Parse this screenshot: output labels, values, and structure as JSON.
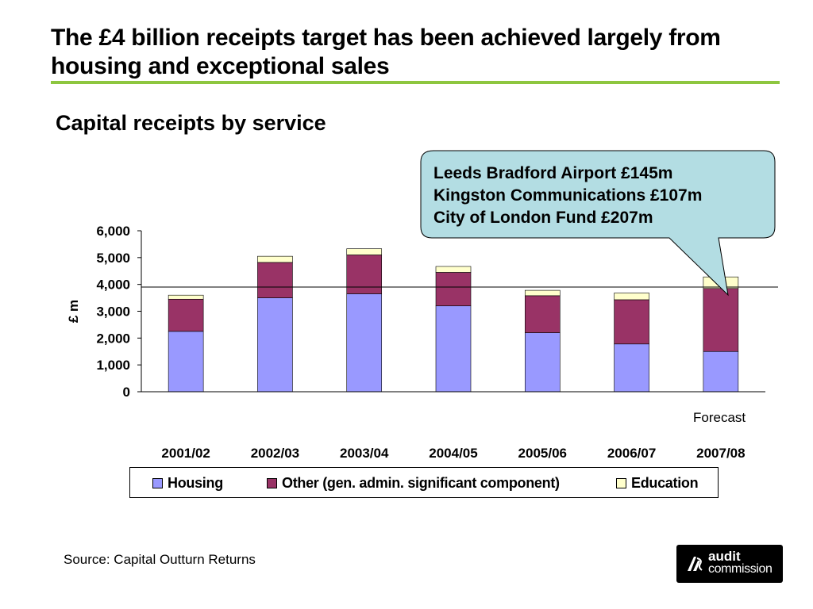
{
  "slide": {
    "title": "The £4 billion receipts target has been achieved largely from housing and exceptional sales",
    "subtitle": "Capital receipts by service",
    "source": "Source: Capital Outturn Returns",
    "forecast_label": "Forecast",
    "callout": {
      "lines": [
        "Leeds Bradford Airport £145m",
        "Kingston Communications £107m",
        "City of London Fund £207m"
      ]
    },
    "logo": {
      "line1": "audit",
      "line2": "commission"
    }
  },
  "colors": {
    "housing": "#9999ff",
    "other": "#993366",
    "education": "#ffffcc",
    "title_rule": "#8dc63f",
    "callout_fill": "#b3dde3"
  },
  "chart_data": {
    "type": "bar",
    "stacked": true,
    "categories": [
      "2001/02",
      "2002/03",
      "2003/04",
      "2004/05",
      "2005/06",
      "2006/07",
      "2007/08"
    ],
    "series": [
      {
        "name": "Housing",
        "values": [
          2250,
          3500,
          3650,
          3200,
          2200,
          1780,
          1500
        ]
      },
      {
        "name": "Other (gen. admin. significant component)",
        "values": [
          1200,
          1320,
          1450,
          1250,
          1380,
          1650,
          2350
        ]
      },
      {
        "name": "Education",
        "values": [
          150,
          230,
          230,
          220,
          200,
          250,
          430
        ]
      }
    ],
    "ylabel": "£ m",
    "ylim": [
      0,
      6000
    ],
    "yticks": [
      "0",
      "1,000",
      "2,000",
      "3,000",
      "4,000",
      "5,000",
      "6,000"
    ],
    "reference_line": 3900,
    "legend_position": "bottom",
    "grid": false
  }
}
